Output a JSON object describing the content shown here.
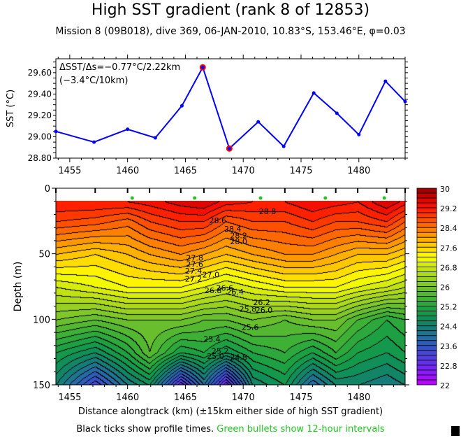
{
  "title": "High SST gradient (rank 8 of 12853)",
  "subtitle": "Mission 8 (09B018),  dive 369,  06-JAN-2010,  10.83°S, 153.46°E,  φ=0.03",
  "footer": {
    "black_part": "Black ticks show profile times.",
    "green_part": "Green bullets show 12-hour intervals",
    "green_color": "#22c422"
  },
  "chart_data": [
    {
      "type": "line",
      "ylabel": "SST (°C)",
      "xlim": [
        1453.8,
        1484.0
      ],
      "ylim": [
        28.8,
        29.73
      ],
      "xticks": [
        1455,
        1460,
        1465,
        1470,
        1475,
        1480
      ],
      "yticks": [
        28.8,
        29.0,
        29.2,
        29.4,
        29.6
      ],
      "ytick_labels": [
        "28.80",
        "29.00",
        "29.20",
        "29.40",
        "29.60"
      ],
      "annotation": [
        "ΔSST/Δs=−0.77°C/2.22km",
        "(−3.4°C/10km)"
      ],
      "line_color": "#0000ff",
      "highlight_color": "#ff0000",
      "x": [
        1453.8,
        1457.1,
        1460.0,
        1462.4,
        1464.7,
        1466.5,
        1468.8,
        1471.3,
        1473.5,
        1476.1,
        1478.1,
        1480.0,
        1482.3,
        1484.0
      ],
      "y": [
        29.05,
        28.95,
        29.07,
        28.99,
        29.29,
        29.65,
        28.89,
        29.14,
        28.91,
        29.41,
        29.22,
        29.02,
        29.52,
        29.33
      ],
      "highlighted_x": [
        1466.5,
        1468.8
      ]
    },
    {
      "type": "heatmap",
      "xlabel": "Distance alongtrack (km) (±15km either side of high SST gradient)",
      "ylabel": "Depth (m)",
      "xlim": [
        1453.8,
        1484.0
      ],
      "ylim": [
        150,
        0
      ],
      "xticks": [
        1455,
        1460,
        1465,
        1470,
        1475,
        1480
      ],
      "yticks": [
        0,
        50,
        100,
        150
      ],
      "profile_x": [
        1453.8,
        1457.2,
        1460.0,
        1461.9,
        1464.6,
        1466.6,
        1468.5,
        1470.8,
        1473.6,
        1476.0,
        1478.0,
        1479.9,
        1482.4,
        1484.0
      ],
      "green_bullets_x": [
        1460.4,
        1465.8,
        1471.5,
        1477.1,
        1482.2
      ],
      "depths": [
        10,
        25,
        50,
        75,
        100,
        125,
        150
      ],
      "temperature": [
        [
          29.2,
          28.8,
          27.8,
          26.8,
          26.0,
          25.0,
          24.4
        ],
        [
          29.2,
          28.7,
          27.6,
          27.0,
          25.8,
          24.6,
          23.2
        ],
        [
          29.2,
          28.5,
          27.8,
          27.2,
          26.0,
          25.2,
          24.2
        ],
        [
          29.3,
          28.8,
          28.0,
          27.2,
          26.0,
          25.8,
          24.6
        ],
        [
          29.5,
          29.0,
          28.2,
          27.2,
          26.0,
          25.0,
          22.8
        ],
        [
          29.6,
          29.0,
          28.0,
          27.0,
          25.8,
          25.2,
          24.0
        ],
        [
          29.3,
          28.6,
          27.8,
          26.8,
          25.8,
          24.8,
          22.6
        ],
        [
          29.2,
          28.8,
          28.0,
          27.0,
          26.0,
          25.2,
          24.4
        ],
        [
          29.2,
          28.8,
          28.2,
          27.2,
          25.8,
          25.4,
          24.8
        ],
        [
          29.4,
          29.0,
          28.2,
          27.2,
          26.0,
          25.0,
          23.8
        ],
        [
          29.3,
          28.8,
          28.0,
          27.2,
          26.0,
          25.4,
          24.4
        ],
        [
          29.2,
          28.8,
          27.8,
          27.0,
          25.6,
          25.0,
          24.4
        ],
        [
          29.6,
          29.0,
          27.8,
          26.8,
          25.2,
          24.8,
          24.2
        ],
        [
          29.3,
          28.6,
          27.6,
          26.6,
          25.4,
          25.0,
          24.4
        ]
      ],
      "contour_interval": 0.2,
      "contour_labels": [
        {
          "text": "28.8",
          "x": 1472.1,
          "depth": 17.6
        },
        {
          "text": "28.6",
          "x": 1467.8,
          "depth": 24.6
        },
        {
          "text": "28.4",
          "x": 1469.1,
          "depth": 31
        },
        {
          "text": "28.2",
          "x": 1469.6,
          "depth": 36
        },
        {
          "text": "28.0",
          "x": 1469.6,
          "depth": 40.6
        },
        {
          "text": "27.8",
          "x": 1465.8,
          "depth": 53
        },
        {
          "text": "27.6",
          "x": 1465.8,
          "depth": 58
        },
        {
          "text": "27.4",
          "x": 1465.7,
          "depth": 63
        },
        {
          "text": "27.2",
          "x": 1465.7,
          "depth": 69
        },
        {
          "text": "27.0",
          "x": 1467.2,
          "depth": 66
        },
        {
          "text": "26.8",
          "x": 1467.4,
          "depth": 78
        },
        {
          "text": "26.6",
          "x": 1468.4,
          "depth": 76
        },
        {
          "text": "26.4",
          "x": 1469.3,
          "depth": 79
        },
        {
          "text": "26.2",
          "x": 1471.6,
          "depth": 87
        },
        {
          "text": "25.8",
          "x": 1470.4,
          "depth": 92
        },
        {
          "text": "26.0",
          "x": 1471.8,
          "depth": 93
        },
        {
          "text": "25.6",
          "x": 1470.6,
          "depth": 106
        },
        {
          "text": "25.4",
          "x": 1467.3,
          "depth": 115
        },
        {
          "text": "25.2",
          "x": 1468.0,
          "depth": 124
        },
        {
          "text": "25.0",
          "x": 1467.6,
          "depth": 128
        },
        {
          "text": "24.8",
          "x": 1469.6,
          "depth": 129
        }
      ],
      "colorbar": {
        "range": [
          22,
          30
        ],
        "step": 0.2,
        "labels": [
          "30",
          "29.2",
          "28.4",
          "27.6",
          "26.8",
          "26",
          "25.2",
          "24.4",
          "23.6",
          "22.8",
          "22"
        ],
        "stops": [
          [
            22.0,
            "#c000ff"
          ],
          [
            22.8,
            "#6a2cf2"
          ],
          [
            23.6,
            "#3058c0"
          ],
          [
            24.0,
            "#23709a"
          ],
          [
            24.4,
            "#12806e"
          ],
          [
            24.8,
            "#0f9450"
          ],
          [
            25.2,
            "#22a440"
          ],
          [
            25.6,
            "#48b432"
          ],
          [
            26.0,
            "#74c22c"
          ],
          [
            26.4,
            "#a2d41e"
          ],
          [
            26.8,
            "#cae610"
          ],
          [
            27.2,
            "#ffff00"
          ],
          [
            27.6,
            "#ffd200"
          ],
          [
            28.0,
            "#ffa400"
          ],
          [
            28.4,
            "#ff7400"
          ],
          [
            28.8,
            "#ff4400"
          ],
          [
            29.2,
            "#ff1400"
          ],
          [
            29.6,
            "#d40000"
          ],
          [
            30.0,
            "#900000"
          ]
        ]
      }
    }
  ]
}
